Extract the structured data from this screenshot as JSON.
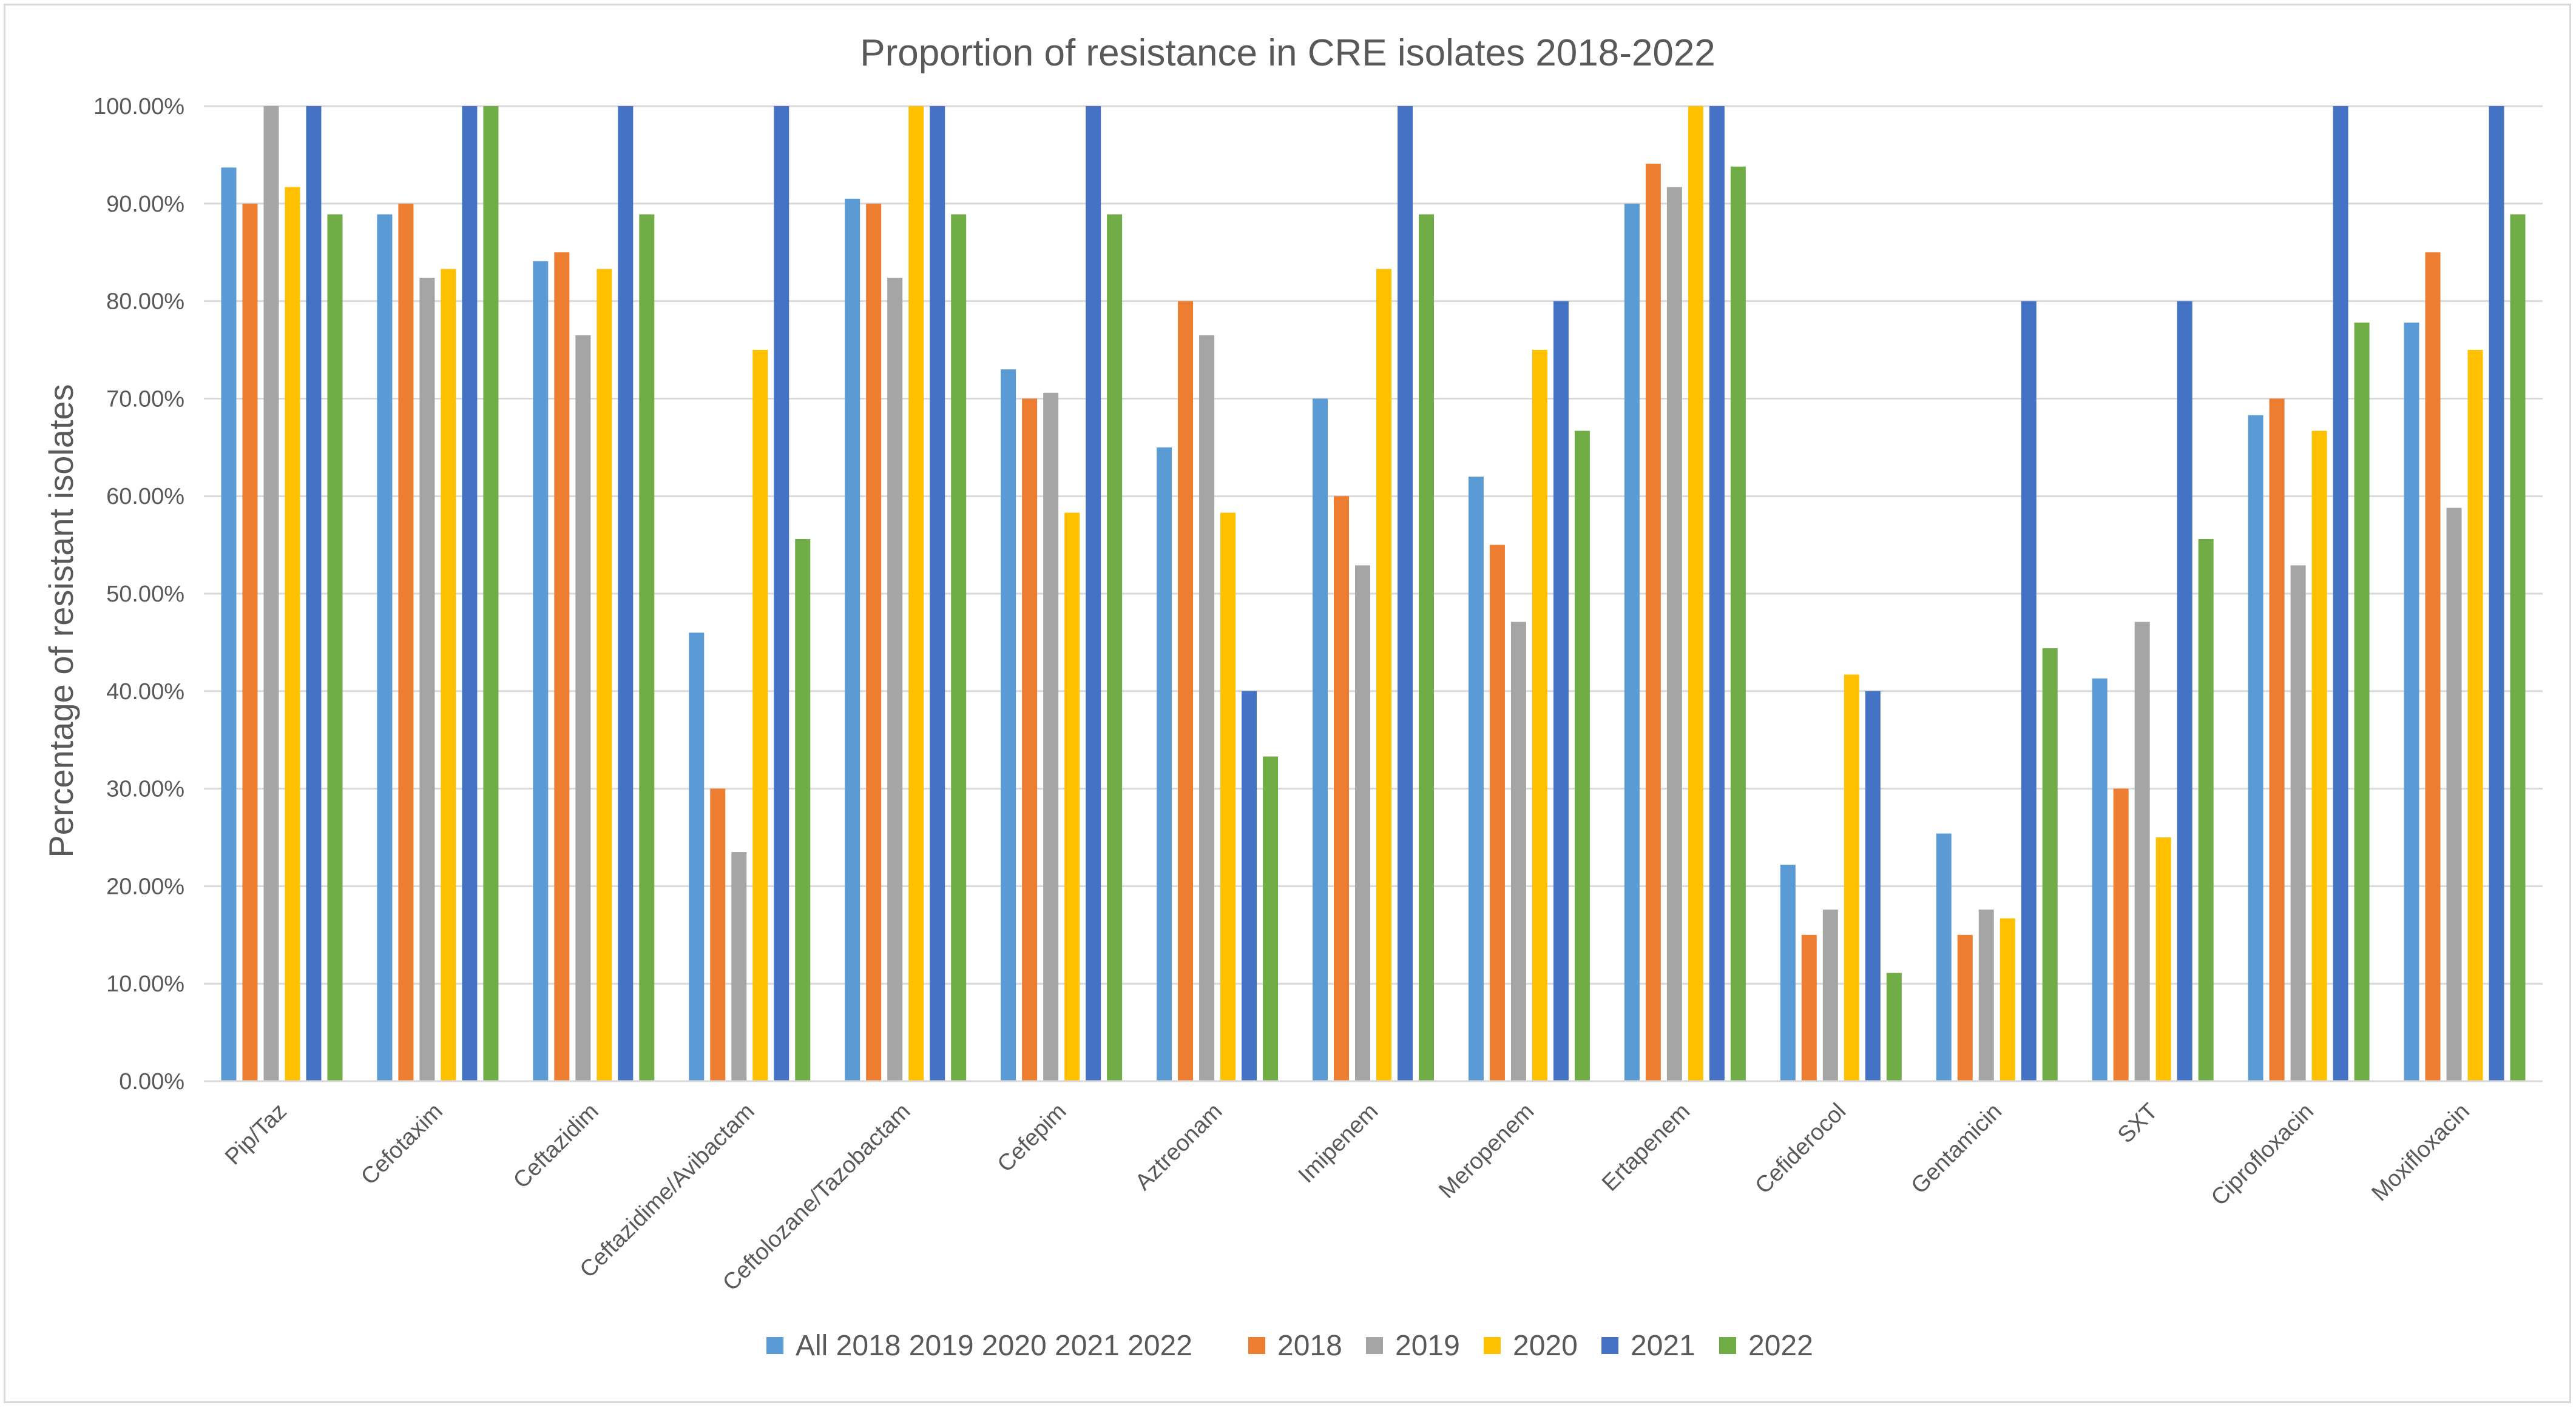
{
  "chart_data": {
    "type": "bar",
    "title": "Proportion of resistance in CRE isolates 2018-2022",
    "xlabel": "",
    "ylabel": "Percentage of resistant isolates",
    "ylim": [
      0,
      100
    ],
    "ytick_step": 10,
    "ytick_labels": [
      "0.00%",
      "10.00%",
      "20.00%",
      "30.00%",
      "40.00%",
      "50.00%",
      "60.00%",
      "70.00%",
      "80.00%",
      "90.00%",
      "100.00%"
    ],
    "grid": true,
    "legend_position": "bottom",
    "categories": [
      "Pip/Taz",
      "Cefotaxim",
      "Ceftazidim",
      "Ceftazidime/Avibactam",
      "Ceftolozane/Tazobactam",
      "Cefepim",
      "Aztreonam",
      "Imipenem",
      "Meropenem",
      "Ertapenem",
      "Cefiderocol",
      "Gentamicin",
      "SXT",
      "Ciprofloxacin",
      "Moxifloxacin"
    ],
    "series": [
      {
        "name": "All 2018 2019 2020 2021 2022",
        "color": "#5b9bd5",
        "values": [
          93.7,
          88.9,
          84.1,
          46.0,
          90.5,
          73.0,
          65.0,
          70.0,
          62.0,
          90.0,
          22.2,
          25.4,
          41.3,
          68.3,
          77.8
        ]
      },
      {
        "name": "2018",
        "color": "#ed7d31",
        "values": [
          90.0,
          90.0,
          85.0,
          30.0,
          90.0,
          70.0,
          80.0,
          60.0,
          55.0,
          94.1,
          15.0,
          15.0,
          30.0,
          70.0,
          85.0
        ]
      },
      {
        "name": "2019",
        "color": "#a5a5a5",
        "values": [
          100.0,
          82.4,
          76.5,
          23.5,
          82.4,
          70.6,
          76.5,
          52.9,
          47.1,
          91.7,
          17.6,
          17.6,
          47.1,
          52.9,
          58.8
        ]
      },
      {
        "name": "2020",
        "color": "#ffc000",
        "values": [
          91.7,
          83.3,
          83.3,
          75.0,
          100.0,
          58.3,
          58.3,
          83.3,
          75.0,
          100.0,
          41.7,
          16.7,
          25.0,
          66.7,
          75.0
        ]
      },
      {
        "name": "2021",
        "color": "#4472c4",
        "values": [
          100.0,
          100.0,
          100.0,
          100.0,
          100.0,
          100.0,
          40.0,
          100.0,
          80.0,
          100.0,
          40.0,
          80.0,
          80.0,
          100.0,
          100.0
        ]
      },
      {
        "name": "2022",
        "color": "#70ad47",
        "values": [
          88.9,
          100.0,
          88.9,
          55.6,
          88.9,
          88.9,
          33.3,
          88.9,
          66.7,
          93.8,
          11.1,
          44.4,
          55.6,
          77.8,
          88.9
        ]
      }
    ]
  }
}
